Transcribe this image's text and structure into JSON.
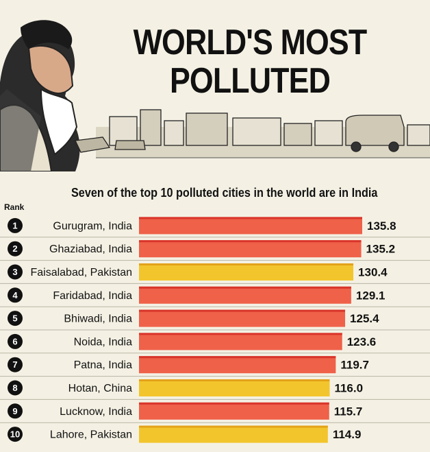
{
  "title_line1": "WORLD'S MOST",
  "title_line2": "POLLUTED",
  "subtitle": "Seven of the top 10 polluted cities in the world are in India",
  "rank_header": "Rank",
  "colors": {
    "india": "#ef6149",
    "india_edge": "#d9352a",
    "other": "#f2c52c",
    "other_edge": "#e3a21a",
    "background": "#f4f1e4"
  },
  "chart_data": {
    "type": "bar",
    "orientation": "horizontal",
    "title": "WORLD'S MOST POLLUTED",
    "subtitle": "Seven of the top 10 polluted cities in the world are in India",
    "categories": [
      "Gurugram, India",
      "Ghaziabad, India",
      "Faisalabad, Pakistan",
      "Faridabad, India",
      "Bhiwadi, India",
      "Noida, India",
      "Patna, India",
      "Hotan, China",
      "Lucknow, India",
      "Lahore, Pakistan"
    ],
    "ranks": [
      "1",
      "2",
      "3",
      "4",
      "5",
      "6",
      "7",
      "8",
      "9",
      "10"
    ],
    "values": [
      135.8,
      135.2,
      130.4,
      129.1,
      125.4,
      123.6,
      119.7,
      116.0,
      115.7,
      114.9
    ],
    "value_labels": [
      "135.8",
      "135.2",
      "130.4",
      "129.1",
      "125.4",
      "123.6",
      "119.7",
      "116.0",
      "115.7",
      "114.9"
    ],
    "is_india": [
      true,
      true,
      false,
      true,
      true,
      true,
      true,
      false,
      true,
      false
    ],
    "xlabel": "",
    "ylabel": "",
    "grid": false,
    "legend": "none"
  }
}
